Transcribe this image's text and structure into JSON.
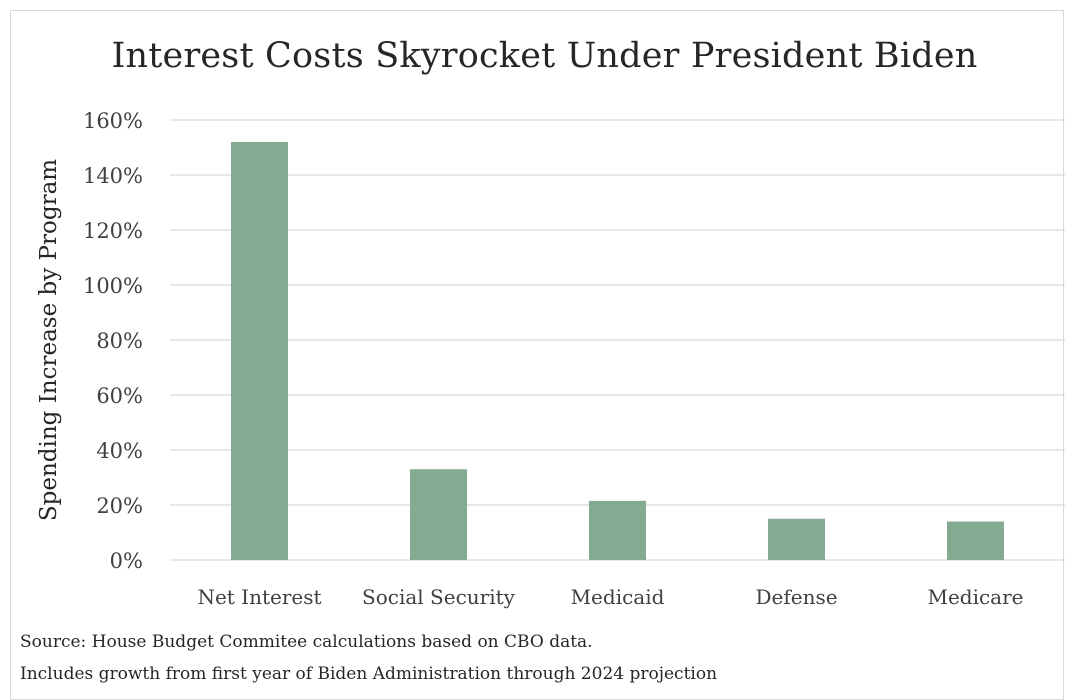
{
  "chart_data": {
    "type": "bar",
    "title": "Interest Costs Skyrocket Under President Biden",
    "xlabel": "",
    "ylabel": "Spending Increase by Program",
    "categories": [
      "Net Interest",
      "Social Security",
      "Medicaid",
      "Defense",
      "Medicare"
    ],
    "values": [
      152,
      33,
      21.5,
      15,
      14
    ],
    "value_unit": "%",
    "ylim": [
      0,
      160
    ],
    "yticks": [
      "0%",
      "20%",
      "40%",
      "60%",
      "80%",
      "100%",
      "120%",
      "140%",
      "160%"
    ],
    "grid": true,
    "legend": "none",
    "bar_color": "#84ab92",
    "grid_color": "#d9d9d9"
  },
  "notes": {
    "source": "Source: House Budget Commitee calculations based on CBO data.",
    "includes": "Includes growth from first year of Biden Administration through 2024 projection"
  }
}
